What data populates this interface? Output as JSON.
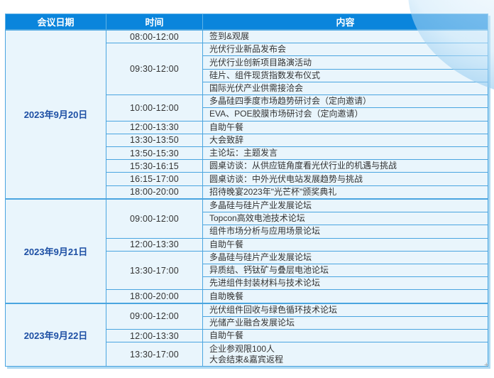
{
  "colors": {
    "header-bg": "#0a85dc",
    "border": "#4aa5e0",
    "cell-bg": "#e9f5fc",
    "date-text": "#1d4fa4",
    "body-text": "#333333",
    "shadow": "#aed9f2"
  },
  "decor": {
    "cursor_glyph": "+"
  },
  "table": {
    "headers": [
      "会议日期",
      "时间",
      "内容"
    ],
    "days": [
      {
        "date": "2023年9月20日",
        "slots": [
          {
            "time": "08:00-12:00",
            "items": [
              "签到&观展"
            ]
          },
          {
            "time": "09:30-12:00",
            "items": [
              "光伏行业新品发布会",
              "光伏行业创新项目路演活动",
              "硅片、组件现货指数发布仪式",
              "国际光伏产业供需接洽会"
            ]
          },
          {
            "time": "10:00-12:00",
            "items": [
              "多晶硅四季度市场趋势研讨会（定向邀请）",
              "EVA、POE胶膜市场研讨会（定向邀请）"
            ]
          },
          {
            "time": "12:00-13:30",
            "items": [
              "自助午餐"
            ]
          },
          {
            "time": "13:30-13:50",
            "items": [
              "大会致辞"
            ]
          },
          {
            "time": "13:50-15:30",
            "items": [
              "主论坛：主题发言"
            ]
          },
          {
            "time": "15:30-16:15",
            "items": [
              "圆桌访谈：从供应链角度看光伏行业的机遇与挑战"
            ]
          },
          {
            "time": "16:15-17:00",
            "items": [
              "圆桌访谈：中外光伏电站发展趋势与挑战"
            ]
          },
          {
            "time": "18:00-20:00",
            "items": [
              "招待晚宴2023年\"光芒杯\"颁奖典礼"
            ]
          }
        ]
      },
      {
        "date": "2023年9月21日",
        "slots": [
          {
            "time": "09:00-12:00",
            "items": [
              "多晶硅与硅片产业发展论坛",
              "Topcon高效电池技术论坛",
              "组件市场分析与应用场景论坛"
            ]
          },
          {
            "time": "12:00-13:30",
            "items": [
              "自助午餐"
            ]
          },
          {
            "time": "13:30-17:00",
            "items": [
              "多晶硅与硅片产业发展论坛",
              "异质结、钙钛矿与叠层电池论坛",
              "先进组件封装材料与技术论坛"
            ]
          },
          {
            "time": "18:00-20:00",
            "items": [
              "自助晚餐"
            ]
          }
        ]
      },
      {
        "date": "2023年9月22日",
        "slots": [
          {
            "time": "09:00-12:00",
            "items": [
              "光伏组件回收与绿色循环技术论坛",
              "光储产业融合发展论坛"
            ]
          },
          {
            "time": "12:00-13:30",
            "items": [
              "自助午餐"
            ]
          },
          {
            "time": "13:30-17:00",
            "items": [
              "企业参观限100人\n大会结束&嘉宾返程"
            ]
          }
        ]
      }
    ]
  }
}
